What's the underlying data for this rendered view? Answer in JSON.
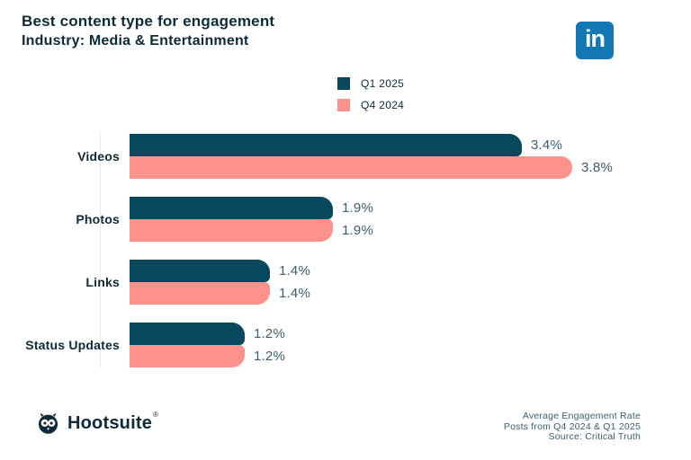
{
  "header": {
    "title": "Best content type for engagement",
    "subtitle": "Industry: Media & Entertainment"
  },
  "linkedin": {
    "glyph": "in"
  },
  "colors": {
    "navy": "#07485e",
    "salmon": "#fd918b",
    "heading_text": "#0e2a39",
    "value_text": "#3e5c70",
    "linkedin_blue": "#1178b3"
  },
  "legend": [
    {
      "label": "Q1 2025",
      "color": "#07485e"
    },
    {
      "label": "Q4 2024",
      "color": "#fd918b"
    }
  ],
  "chart_data": {
    "type": "bar",
    "orientation": "horizontal",
    "title": "Best content type for engagement",
    "subtitle": "Industry: Media & Entertainment",
    "categories": [
      "Videos",
      "Photos",
      "Links",
      "Status Updates"
    ],
    "series": [
      {
        "name": "Q1 2025",
        "color": "#07485e",
        "values": [
          3.4,
          1.9,
          1.4,
          1.2
        ],
        "value_labels": [
          "3.4%",
          "1.9%",
          "1.4%",
          "1.2%"
        ]
      },
      {
        "name": "Q4 2024",
        "color": "#fd918b",
        "values": [
          3.8,
          1.9,
          1.4,
          1.2
        ],
        "value_labels": [
          "3.8%",
          "1.9%",
          "1.4%",
          "1.2%"
        ]
      }
    ],
    "value_suffix": "%",
    "xlim": [
      0,
      4
    ],
    "grid": false,
    "legend_position": "top-center"
  },
  "footer": {
    "brand": "Hootsuite",
    "brand_mark": "®",
    "note_lines": [
      "Average Engagement Rate",
      "Posts from Q4 2024 & Q1 2025",
      "Source: Critical Truth"
    ]
  }
}
